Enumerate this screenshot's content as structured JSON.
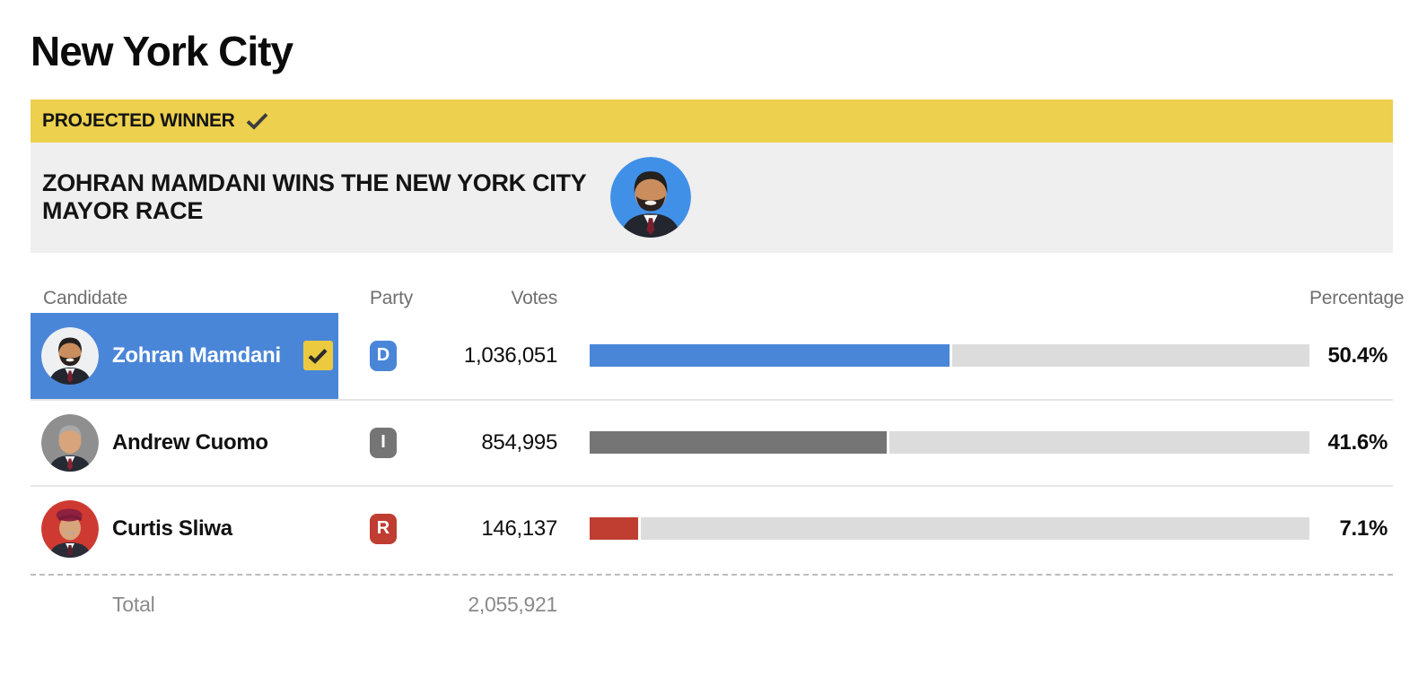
{
  "page": {
    "title": "New York City"
  },
  "banner": {
    "label": "PROJECTED WINNER",
    "headline": "ZOHRAN MAMDANI WINS THE NEW YORK CITY MAYOR RACE"
  },
  "table": {
    "headers": {
      "candidate": "Candidate",
      "party": "Party",
      "votes": "Votes",
      "percentage": "Percentage"
    },
    "rows": [
      {
        "name": "Zohran Mamdani",
        "party": "D",
        "votes": "1,036,051",
        "pct_label": "50.4%",
        "pct": 50.4,
        "color": "#4a86d8",
        "winner": true
      },
      {
        "name": "Andrew Cuomo",
        "party": "I",
        "votes": "854,995",
        "pct_label": "41.6%",
        "pct": 41.6,
        "color": "#757575",
        "winner": false
      },
      {
        "name": "Curtis Sliwa",
        "party": "R",
        "votes": "146,137",
        "pct_label": "7.1%",
        "pct": 7.1,
        "color": "#c03d32",
        "winner": false
      }
    ],
    "total": {
      "label": "Total",
      "votes": "2,055,921"
    }
  },
  "colors": {
    "banner_yellow": "#ecd04e",
    "banner_gray": "#efefef",
    "winner_row_blue": "#4a86d8",
    "bar_track_gray": "#dcdcdc",
    "checkbox_yellow": "#ecca40"
  },
  "icons": {
    "projected_winner_check": "check-icon",
    "winner_checkbox_check": "check-icon"
  },
  "chart_data": {
    "type": "bar",
    "orientation": "horizontal",
    "title": "New York City",
    "annotations": [
      "PROJECTED WINNER",
      "ZOHRAN MAMDANI WINS THE NEW YORK CITY MAYOR RACE"
    ],
    "categories": [
      "Zohran Mamdani",
      "Andrew Cuomo",
      "Curtis Sliwa"
    ],
    "parties": [
      "D",
      "I",
      "R"
    ],
    "series": [
      {
        "name": "Votes",
        "values": [
          1036051,
          854995,
          146137
        ]
      },
      {
        "name": "Percentage",
        "values": [
          50.4,
          41.6,
          7.1
        ]
      }
    ],
    "total_votes": 2055921,
    "xlabel": "",
    "ylabel": "",
    "xlim": [
      0,
      100
    ],
    "grid": false,
    "legend": false,
    "bar_colors": [
      "#4a86d8",
      "#757575",
      "#c03d32"
    ],
    "track_color": "#dcdcdc"
  }
}
